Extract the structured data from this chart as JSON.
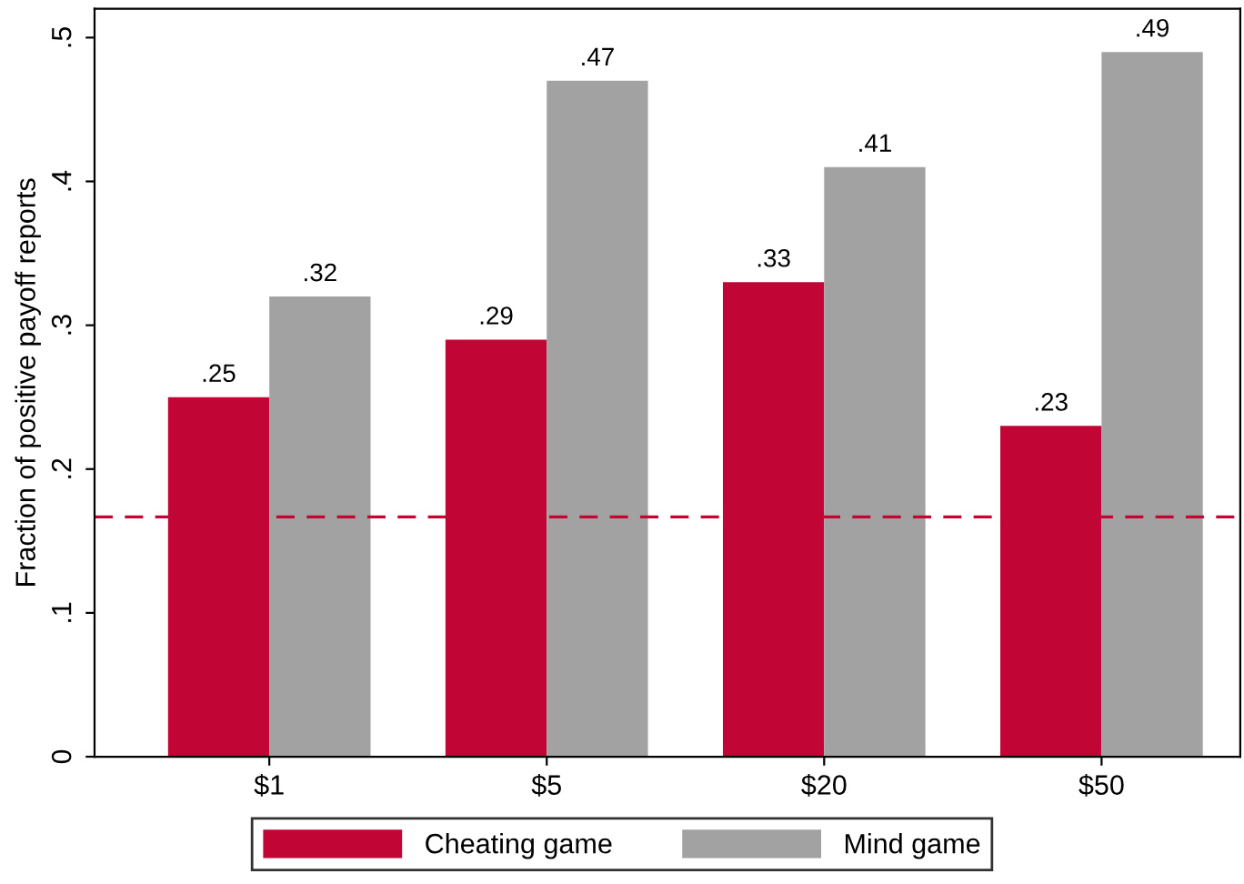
{
  "chart_data": {
    "type": "bar",
    "ylabel": "Fraction of positive payoff reports",
    "categories": [
      "$1",
      "$5",
      "$20",
      "$50"
    ],
    "series": [
      {
        "name": "Cheating game",
        "color": "#c10534",
        "values": [
          0.25,
          0.29,
          0.33,
          0.23
        ],
        "value_labels": [
          ".25",
          ".29",
          ".33",
          ".23"
        ]
      },
      {
        "name": "Mind game",
        "color": "#a2a2a2",
        "values": [
          0.32,
          0.47,
          0.41,
          0.49
        ],
        "value_labels": [
          ".32",
          ".47",
          ".41",
          ".49"
        ]
      }
    ],
    "ylim": [
      0,
      0.52
    ],
    "yticks": [
      {
        "value": 0,
        "label": "0"
      },
      {
        "value": 0.1,
        "label": ".1"
      },
      {
        "value": 0.2,
        "label": ".2"
      },
      {
        "value": 0.3,
        "label": ".3"
      },
      {
        "value": 0.4,
        "label": ".4"
      },
      {
        "value": 0.5,
        "label": ".5"
      }
    ],
    "ref_lines": [
      {
        "axis": "y",
        "value": 0.1667,
        "label": null,
        "color": "#c10534",
        "line_style": "dashed"
      }
    ],
    "grid": false,
    "legend": "bottom"
  }
}
